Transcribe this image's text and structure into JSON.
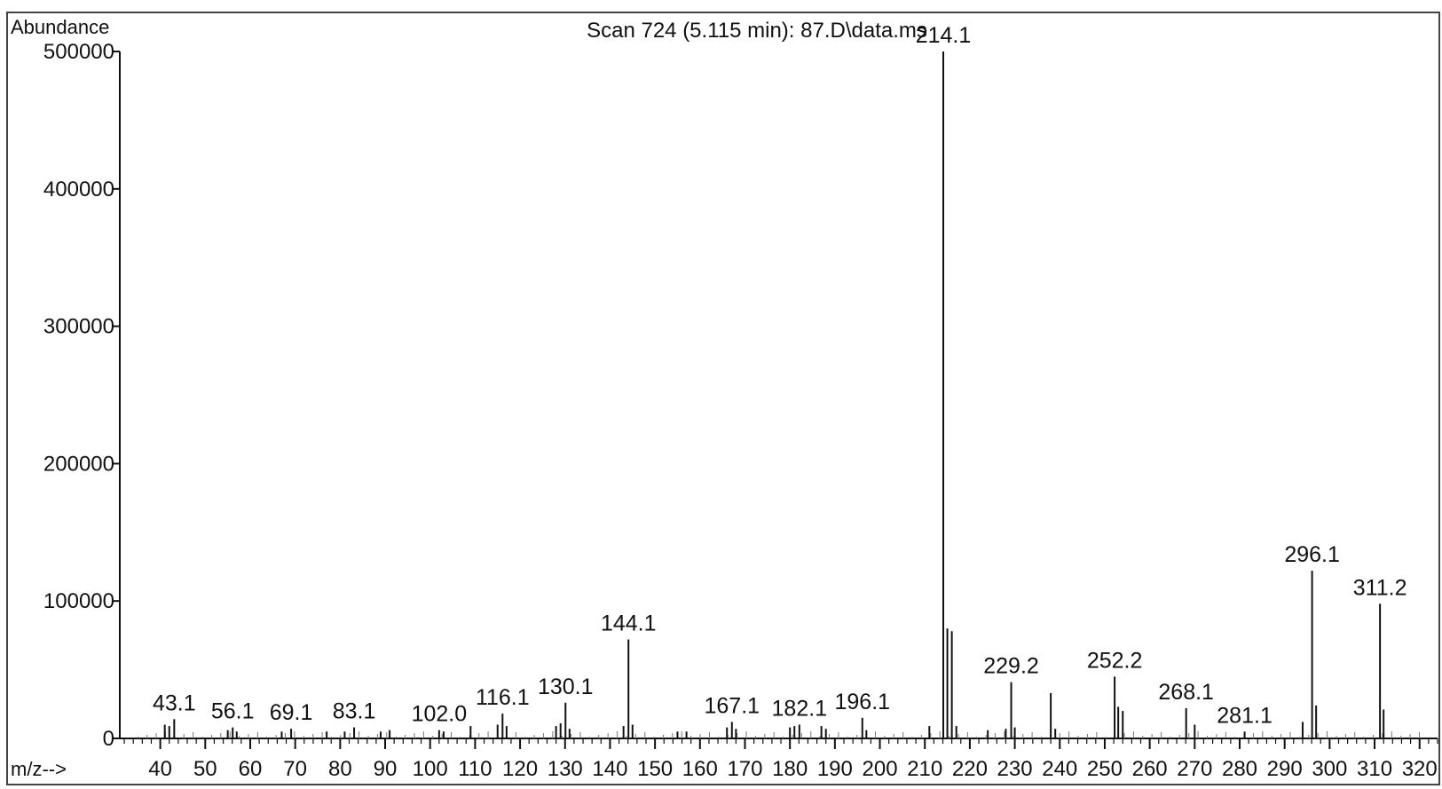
{
  "chart_data": {
    "type": "bar",
    "title": "Scan 724 (5.115 min): 87.D\\data.ms",
    "ylabel": "Abundance",
    "xlabel": "m/z-->",
    "xlim": [
      31,
      324
    ],
    "ylim": [
      0,
      500000
    ],
    "y_ticks": [
      0,
      100000,
      200000,
      300000,
      400000,
      500000
    ],
    "x_ticks": [
      40,
      50,
      60,
      70,
      80,
      90,
      100,
      110,
      120,
      130,
      140,
      150,
      160,
      170,
      180,
      190,
      200,
      210,
      220,
      230,
      240,
      250,
      260,
      270,
      280,
      290,
      300,
      310,
      320
    ],
    "grid": false,
    "legend": "none",
    "colors": {
      "line": "#111111",
      "axis": "#111111",
      "frame": "#444444"
    },
    "peaks": [
      {
        "mz": 41.0,
        "abundance": 10000
      },
      {
        "mz": 42.0,
        "abundance": 9000
      },
      {
        "mz": 43.1,
        "abundance": 14000,
        "label": "43.1"
      },
      {
        "mz": 55.0,
        "abundance": 6000
      },
      {
        "mz": 56.1,
        "abundance": 8000,
        "label": "56.1"
      },
      {
        "mz": 57.0,
        "abundance": 5000
      },
      {
        "mz": 67.0,
        "abundance": 5000
      },
      {
        "mz": 69.1,
        "abundance": 7000,
        "label": "69.1"
      },
      {
        "mz": 77.0,
        "abundance": 5000
      },
      {
        "mz": 81.0,
        "abundance": 5000
      },
      {
        "mz": 83.1,
        "abundance": 8000,
        "label": "83.1"
      },
      {
        "mz": 89.0,
        "abundance": 5000
      },
      {
        "mz": 91.0,
        "abundance": 6000
      },
      {
        "mz": 102.0,
        "abundance": 6000,
        "label": "102.0"
      },
      {
        "mz": 103.0,
        "abundance": 5000
      },
      {
        "mz": 109.0,
        "abundance": 9000
      },
      {
        "mz": 115.0,
        "abundance": 10000
      },
      {
        "mz": 116.1,
        "abundance": 18000,
        "label": "116.1"
      },
      {
        "mz": 117.0,
        "abundance": 9000
      },
      {
        "mz": 128.0,
        "abundance": 9000
      },
      {
        "mz": 129.0,
        "abundance": 11000
      },
      {
        "mz": 130.1,
        "abundance": 26000,
        "label": "130.1"
      },
      {
        "mz": 131.0,
        "abundance": 7000
      },
      {
        "mz": 143.0,
        "abundance": 9000
      },
      {
        "mz": 144.1,
        "abundance": 72000,
        "label": "144.1"
      },
      {
        "mz": 145.0,
        "abundance": 10000
      },
      {
        "mz": 155.0,
        "abundance": 5000
      },
      {
        "mz": 157.0,
        "abundance": 5000
      },
      {
        "mz": 166.0,
        "abundance": 8000
      },
      {
        "mz": 167.1,
        "abundance": 12000,
        "label": "167.1"
      },
      {
        "mz": 168.0,
        "abundance": 7000
      },
      {
        "mz": 180.0,
        "abundance": 8000
      },
      {
        "mz": 181.0,
        "abundance": 9000
      },
      {
        "mz": 182.1,
        "abundance": 10000,
        "label": "182.1"
      },
      {
        "mz": 187.0,
        "abundance": 9000
      },
      {
        "mz": 188.0,
        "abundance": 7000
      },
      {
        "mz": 196.1,
        "abundance": 15000,
        "label": "196.1"
      },
      {
        "mz": 197.0,
        "abundance": 6000
      },
      {
        "mz": 211.0,
        "abundance": 9000
      },
      {
        "mz": 214.1,
        "abundance": 500000,
        "label": "214.1"
      },
      {
        "mz": 215.0,
        "abundance": 80000
      },
      {
        "mz": 216.0,
        "abundance": 78000
      },
      {
        "mz": 217.0,
        "abundance": 9000
      },
      {
        "mz": 224.0,
        "abundance": 6000
      },
      {
        "mz": 228.0,
        "abundance": 7000
      },
      {
        "mz": 229.2,
        "abundance": 41000,
        "label": "229.2"
      },
      {
        "mz": 230.0,
        "abundance": 8000
      },
      {
        "mz": 238.0,
        "abundance": 33000
      },
      {
        "mz": 239.0,
        "abundance": 7000
      },
      {
        "mz": 252.2,
        "abundance": 45000,
        "label": "252.2"
      },
      {
        "mz": 253.0,
        "abundance": 23000
      },
      {
        "mz": 254.0,
        "abundance": 20000
      },
      {
        "mz": 268.1,
        "abundance": 22000,
        "label": "268.1"
      },
      {
        "mz": 270.0,
        "abundance": 10000
      },
      {
        "mz": 281.1,
        "abundance": 5000,
        "label": "281.1"
      },
      {
        "mz": 294.0,
        "abundance": 12000
      },
      {
        "mz": 296.1,
        "abundance": 122000,
        "label": "296.1"
      },
      {
        "mz": 297.0,
        "abundance": 24000
      },
      {
        "mz": 311.2,
        "abundance": 98000,
        "label": "311.2"
      },
      {
        "mz": 312.0,
        "abundance": 21000
      }
    ]
  }
}
